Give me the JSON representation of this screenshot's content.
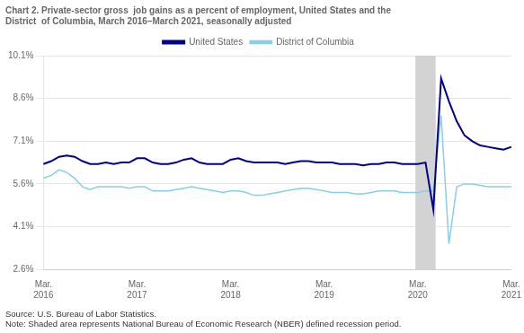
{
  "chart_data": {
    "type": "line",
    "title": [
      "Chart 2. Private-sector gross  job gains as a percent of employment, United States and the",
      "District  of Columbia, March 2016–March 2021, seasonally adjusted"
    ],
    "source": "Source: U.S. Bureau of Labor Statistics.",
    "note": "Note: Shaded area represents National Bureau of Economic Research (NBER) defined recession period.",
    "categories": [
      "Mar.\n2016",
      null,
      null,
      null,
      null,
      null,
      null,
      null,
      null,
      null,
      null,
      null,
      "Mar.\n2017",
      null,
      null,
      null,
      null,
      null,
      null,
      null,
      null,
      null,
      null,
      null,
      "Mar.\n2018",
      null,
      null,
      null,
      null,
      null,
      null,
      null,
      null,
      null,
      null,
      null,
      "Mar.\n2019",
      null,
      null,
      null,
      null,
      null,
      null,
      null,
      null,
      null,
      null,
      null,
      "Mar.\n2020",
      null,
      null,
      null,
      null,
      null,
      null,
      null,
      null,
      null,
      null,
      null,
      "Mar.\n2021"
    ],
    "series": [
      {
        "name": "United States",
        "color": "#00008B",
        "values": [
          6.3,
          6.4,
          6.55,
          6.6,
          6.55,
          6.4,
          6.3,
          6.3,
          6.35,
          6.3,
          6.35,
          6.35,
          6.5,
          6.5,
          6.35,
          6.3,
          6.3,
          6.35,
          6.45,
          6.5,
          6.35,
          6.3,
          6.3,
          6.3,
          6.45,
          6.5,
          6.4,
          6.35,
          6.35,
          6.35,
          6.35,
          6.3,
          6.35,
          6.4,
          6.4,
          6.35,
          6.35,
          6.35,
          6.3,
          6.3,
          6.3,
          6.25,
          6.3,
          6.3,
          6.35,
          6.35,
          6.3,
          6.3,
          6.3,
          6.35,
          4.7,
          9.3,
          8.5,
          7.8,
          7.3,
          7.1,
          6.95,
          6.9,
          6.85,
          6.8,
          6.9
        ]
      },
      {
        "name": "District of Columbia",
        "color": "#87CEEB",
        "values": [
          5.8,
          5.9,
          6.1,
          6.0,
          5.8,
          5.5,
          5.4,
          5.5,
          5.5,
          5.5,
          5.5,
          5.45,
          5.5,
          5.5,
          5.35,
          5.35,
          5.35,
          5.4,
          5.45,
          5.5,
          5.45,
          5.4,
          5.35,
          5.3,
          5.35,
          5.35,
          5.3,
          5.2,
          5.2,
          5.25,
          5.3,
          5.35,
          5.4,
          5.45,
          5.45,
          5.4,
          5.35,
          5.3,
          5.3,
          5.3,
          5.25,
          5.25,
          5.3,
          5.35,
          5.35,
          5.35,
          5.3,
          5.3,
          5.3,
          5.35,
          5.35,
          8.0,
          3.5,
          5.5,
          5.6,
          5.6,
          5.55,
          5.5,
          5.5,
          5.5,
          5.5
        ]
      }
    ],
    "shaded_periods": [
      {
        "start": 48,
        "end": 50,
        "color": "#d3d3d3"
      }
    ],
    "ylim": [
      2.6,
      10.1
    ],
    "yticks": [
      {
        "value": 2.6,
        "label": "2.6%"
      },
      {
        "value": 4.1,
        "label": "4.1%"
      },
      {
        "value": 5.6,
        "label": "5.6%"
      },
      {
        "value": 7.1,
        "label": "7.1%"
      },
      {
        "value": 8.6,
        "label": "8.6%"
      },
      {
        "value": 10.1,
        "label": "10.1%"
      }
    ],
    "grid": "y",
    "legend": "top"
  }
}
